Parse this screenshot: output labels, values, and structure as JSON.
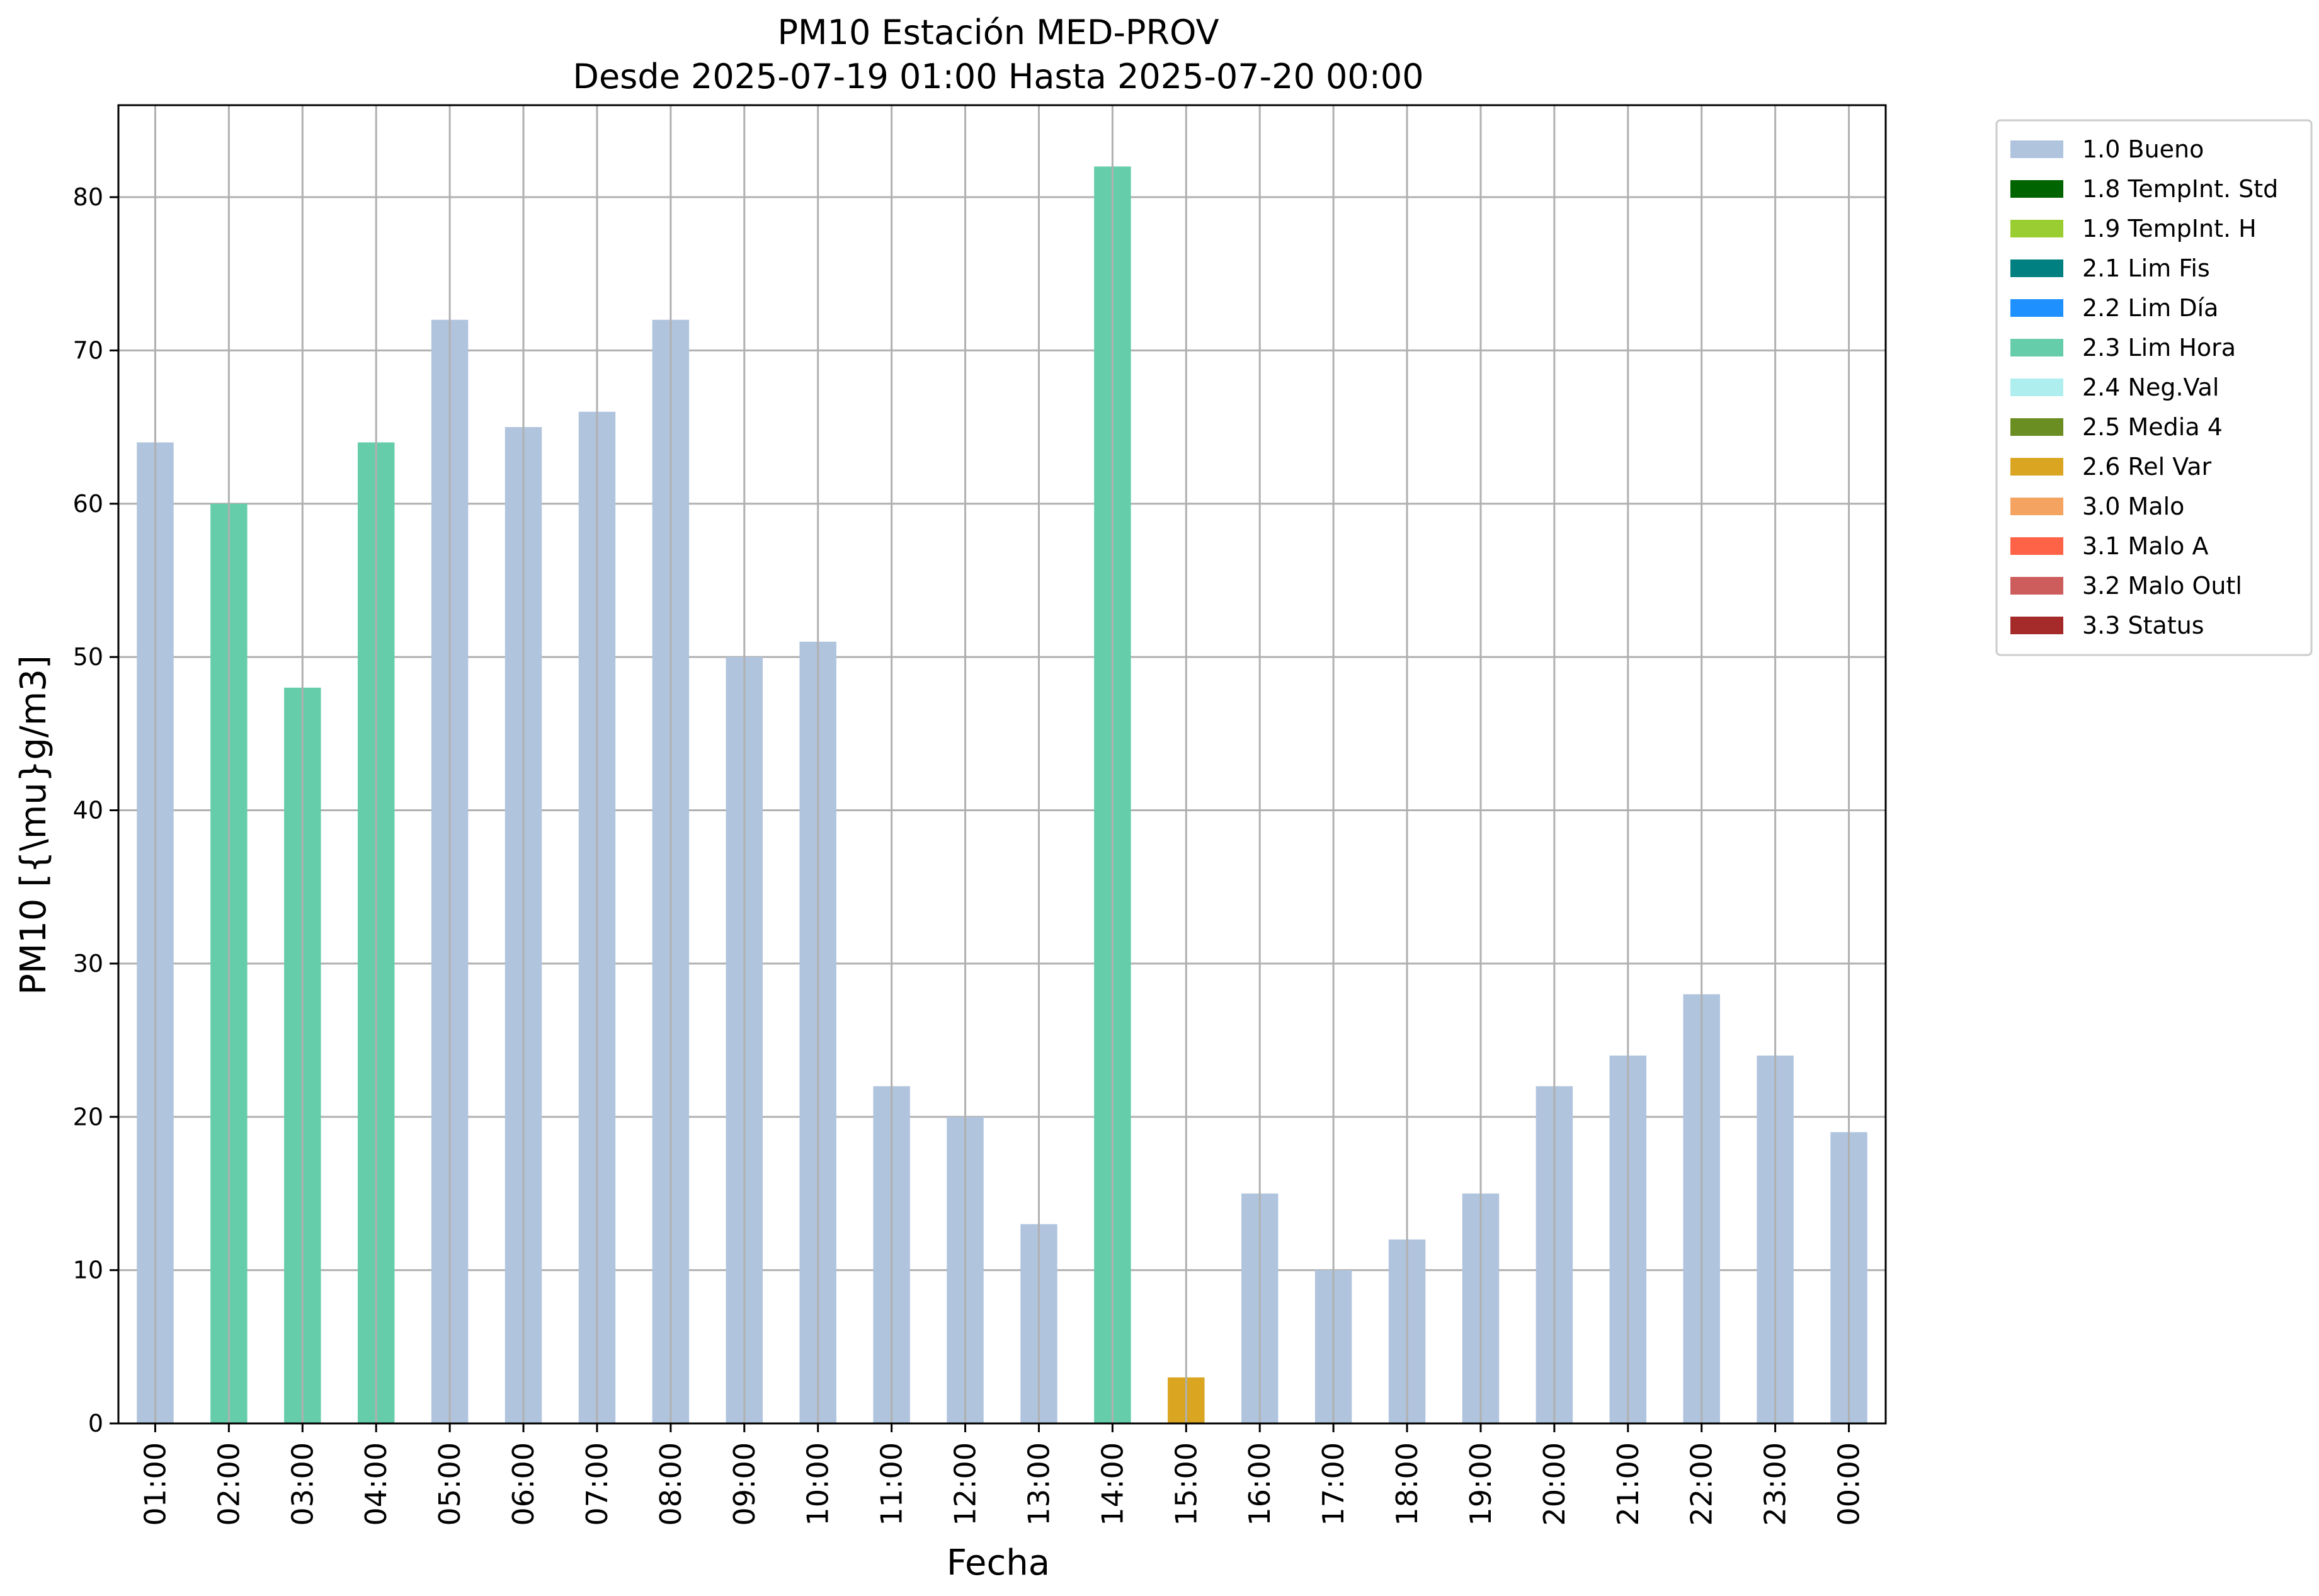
{
  "chart_data": {
    "type": "bar",
    "title": "PM10 Estación MED-PROV",
    "subtitle": "Desde 2025-07-19 01:00 Hasta 2025-07-20 00:00",
    "xlabel": "Fecha",
    "ylabel": "PM10 [{\\mu}g/m3]",
    "ylim": [
      0,
      86
    ],
    "yticks": [
      0,
      10,
      20,
      30,
      40,
      50,
      60,
      70,
      80
    ],
    "grid": true,
    "legend_position": "outside-top-right",
    "categories": [
      "01:00",
      "02:00",
      "03:00",
      "04:00",
      "05:00",
      "06:00",
      "07:00",
      "08:00",
      "09:00",
      "10:00",
      "11:00",
      "12:00",
      "13:00",
      "14:00",
      "15:00",
      "16:00",
      "17:00",
      "18:00",
      "19:00",
      "20:00",
      "21:00",
      "22:00",
      "23:00",
      "00:00"
    ],
    "values": [
      64,
      60,
      48,
      64,
      72,
      65,
      66,
      72,
      50,
      51,
      22,
      20,
      13,
      82,
      3,
      15,
      10,
      12,
      15,
      22,
      24,
      28,
      24,
      19
    ],
    "flags": [
      "1.0 Bueno",
      "2.3 Lim Hora",
      "2.3 Lim Hora",
      "2.3 Lim Hora",
      "1.0 Bueno",
      "1.0 Bueno",
      "1.0 Bueno",
      "1.0 Bueno",
      "1.0 Bueno",
      "1.0 Bueno",
      "1.0 Bueno",
      "1.0 Bueno",
      "1.0 Bueno",
      "2.3 Lim Hora",
      "2.6 Rel Var",
      "1.0 Bueno",
      "1.0 Bueno",
      "1.0 Bueno",
      "1.0 Bueno",
      "1.0 Bueno",
      "1.0 Bueno",
      "1.0 Bueno",
      "1.0 Bueno",
      "1.0 Bueno"
    ],
    "legend": [
      {
        "label": "1.0 Bueno",
        "color": "#b0c4de"
      },
      {
        "label": "1.8 TempInt. Std",
        "color": "#006400"
      },
      {
        "label": "1.9 TempInt. H",
        "color": "#9acd32"
      },
      {
        "label": "2.1 Lim Fis",
        "color": "#008080"
      },
      {
        "label": "2.2 Lim Día",
        "color": "#1e90ff"
      },
      {
        "label": "2.3 Lim Hora",
        "color": "#66cdaa"
      },
      {
        "label": "2.4 Neg.Val",
        "color": "#afeeee"
      },
      {
        "label": "2.5 Media 4",
        "color": "#6b8e23"
      },
      {
        "label": "2.6 Rel Var",
        "color": "#daa520"
      },
      {
        "label": "3.0 Malo",
        "color": "#f4a460"
      },
      {
        "label": "3.1 Malo A",
        "color": "#ff6347"
      },
      {
        "label": "3.2 Malo Outl",
        "color": "#cd5c5c"
      },
      {
        "label": "3.3 Status",
        "color": "#a52a2a"
      }
    ]
  }
}
